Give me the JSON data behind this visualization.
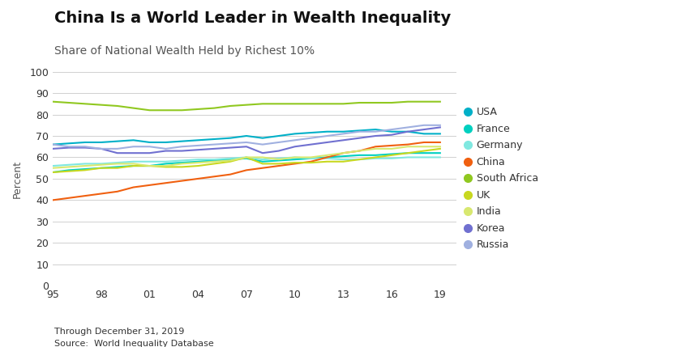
{
  "title": "China Is a World Leader in Wealth Inequality",
  "subtitle": "Share of National Wealth Held by Richest 10%",
  "ylabel": "Percent",
  "footer1": "Through December 31, 2019",
  "footer2": "Source:  World Inequality Database",
  "x_ticks": [
    1995,
    1998,
    2001,
    2004,
    2007,
    2010,
    2013,
    2016,
    2019
  ],
  "x_tick_labels": [
    "95",
    "98",
    "01",
    "04",
    "07",
    "10",
    "13",
    "16",
    "19"
  ],
  "ylim": [
    0,
    100
  ],
  "yticks": [
    0,
    10,
    20,
    30,
    40,
    50,
    60,
    70,
    80,
    90,
    100
  ],
  "series": {
    "USA": {
      "color": "#00b0c8",
      "data_x": [
        1995,
        1996,
        1997,
        1998,
        1999,
        2000,
        2001,
        2002,
        2003,
        2004,
        2005,
        2006,
        2007,
        2008,
        2009,
        2010,
        2011,
        2012,
        2013,
        2014,
        2015,
        2016,
        2017,
        2018,
        2019
      ],
      "data_y": [
        66,
        66.5,
        67,
        67,
        67.5,
        68,
        67,
        67,
        67.5,
        68,
        68.5,
        69,
        70,
        69,
        70,
        71,
        71.5,
        72,
        72,
        72.5,
        73,
        72,
        72,
        71,
        71
      ]
    },
    "France": {
      "color": "#00d0c0",
      "data_x": [
        1995,
        1996,
        1997,
        1998,
        1999,
        2000,
        2001,
        2002,
        2003,
        2004,
        2005,
        2006,
        2007,
        2008,
        2009,
        2010,
        2011,
        2012,
        2013,
        2014,
        2015,
        2016,
        2017,
        2018,
        2019
      ],
      "data_y": [
        53,
        54,
        54.5,
        55,
        55.5,
        56,
        56,
        57,
        57.5,
        58,
        58.5,
        59,
        59.5,
        58,
        58.5,
        59,
        59.5,
        60,
        60.5,
        61,
        61,
        61.5,
        62,
        62,
        62
      ]
    },
    "Germany": {
      "color": "#80e8e0",
      "data_x": [
        1995,
        1996,
        1997,
        1998,
        1999,
        2000,
        2001,
        2002,
        2003,
        2004,
        2005,
        2006,
        2007,
        2008,
        2009,
        2010,
        2011,
        2012,
        2013,
        2014,
        2015,
        2016,
        2017,
        2018,
        2019
      ],
      "data_y": [
        56,
        56.5,
        57,
        57,
        57.5,
        58,
        58,
        58,
        58.5,
        59,
        59,
        59.5,
        60,
        59,
        59.5,
        60,
        59.5,
        59.5,
        59,
        59,
        59.5,
        59.5,
        60,
        60,
        60
      ]
    },
    "China": {
      "color": "#f06010",
      "data_x": [
        1995,
        1996,
        1997,
        1998,
        1999,
        2000,
        2001,
        2002,
        2003,
        2004,
        2005,
        2006,
        2007,
        2008,
        2009,
        2010,
        2011,
        2012,
        2013,
        2014,
        2015,
        2016,
        2017,
        2018,
        2019
      ],
      "data_y": [
        40,
        41,
        42,
        43,
        44,
        46,
        47,
        48,
        49,
        50,
        51,
        52,
        54,
        55,
        56,
        57,
        58,
        60,
        62,
        63,
        65,
        65.5,
        66,
        67,
        67
      ]
    },
    "South Africa": {
      "color": "#90c820",
      "data_x": [
        1995,
        1996,
        1997,
        1998,
        1999,
        2000,
        2001,
        2002,
        2003,
        2004,
        2005,
        2006,
        2007,
        2008,
        2009,
        2010,
        2011,
        2012,
        2013,
        2014,
        2015,
        2016,
        2017,
        2018,
        2019
      ],
      "data_y": [
        86,
        85.5,
        85,
        84.5,
        84,
        83,
        82,
        82,
        82,
        82.5,
        83,
        84,
        84.5,
        85,
        85,
        85,
        85,
        85,
        85,
        85.5,
        85.5,
        85.5,
        86,
        86,
        86
      ]
    },
    "UK": {
      "color": "#c8d820",
      "data_x": [
        1995,
        1996,
        1997,
        1998,
        1999,
        2000,
        2001,
        2002,
        2003,
        2004,
        2005,
        2006,
        2007,
        2008,
        2009,
        2010,
        2011,
        2012,
        2013,
        2014,
        2015,
        2016,
        2017,
        2018,
        2019
      ],
      "data_y": [
        53,
        53.5,
        54,
        55,
        55,
        56,
        56,
        55.5,
        55.5,
        56,
        57,
        58,
        60,
        57,
        57,
        57.5,
        57.5,
        58,
        58,
        59,
        60,
        61,
        62,
        63,
        64
      ]
    },
    "India": {
      "color": "#d8e870",
      "data_x": [
        1995,
        1996,
        1997,
        1998,
        1999,
        2000,
        2001,
        2002,
        2003,
        2004,
        2005,
        2006,
        2007,
        2008,
        2009,
        2010,
        2011,
        2012,
        2013,
        2014,
        2015,
        2016,
        2017,
        2018,
        2019
      ],
      "data_y": [
        55,
        55.5,
        56,
        56.5,
        57,
        57,
        56,
        56,
        57,
        57.5,
        58,
        58.5,
        60,
        60,
        59,
        60,
        60,
        61,
        62,
        63,
        64,
        64,
        65,
        65,
        65
      ]
    },
    "Korea": {
      "color": "#7070d0",
      "data_x": [
        1995,
        1996,
        1997,
        1998,
        1999,
        2000,
        2001,
        2002,
        2003,
        2004,
        2005,
        2006,
        2007,
        2008,
        2009,
        2010,
        2011,
        2012,
        2013,
        2014,
        2015,
        2016,
        2017,
        2018,
        2019
      ],
      "data_y": [
        64,
        64.5,
        64.5,
        64,
        62,
        62,
        62,
        63,
        63,
        63.5,
        64,
        64.5,
        65,
        62,
        63,
        65,
        66,
        67,
        68,
        69,
        70,
        70.5,
        72,
        73,
        74
      ]
    },
    "Russia": {
      "color": "#a0b0e0",
      "data_x": [
        1995,
        1996,
        1997,
        1998,
        1999,
        2000,
        2001,
        2002,
        2003,
        2004,
        2005,
        2006,
        2007,
        2008,
        2009,
        2010,
        2011,
        2012,
        2013,
        2014,
        2015,
        2016,
        2017,
        2018,
        2019
      ],
      "data_y": [
        66,
        65,
        65,
        64,
        64,
        65,
        65,
        64,
        65,
        65.5,
        66,
        66.5,
        67,
        66,
        67,
        68,
        69,
        70,
        71,
        72,
        72,
        73,
        74,
        75,
        75
      ]
    }
  },
  "series_order": [
    "USA",
    "France",
    "Germany",
    "China",
    "South Africa",
    "UK",
    "India",
    "Korea",
    "Russia"
  ],
  "background_color": "#ffffff",
  "grid_color": "#d0d0d0",
  "title_fontsize": 14,
  "subtitle_fontsize": 10,
  "legend_fontsize": 9
}
